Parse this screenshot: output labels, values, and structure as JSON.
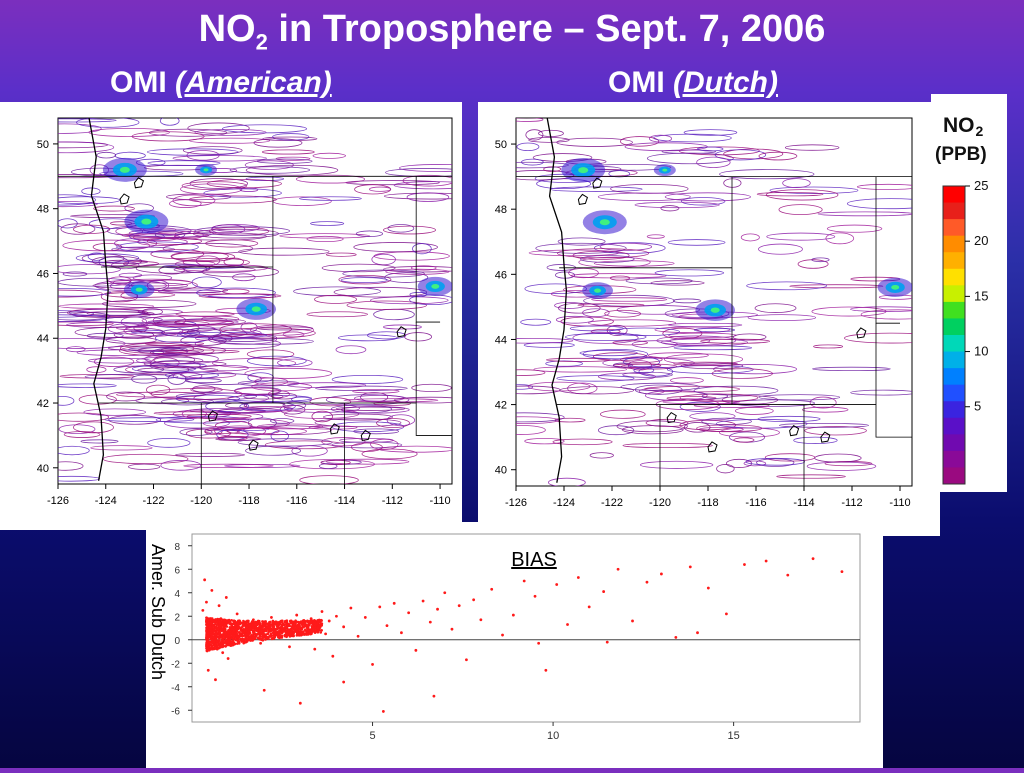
{
  "slide": {
    "title_main": "NO",
    "title_sub": "2",
    "title_rest": " in Troposphere – Sept. 7, 2006",
    "left_label_prefix": "OMI ",
    "left_label_emph": "(American)",
    "right_label_prefix": "OMI ",
    "right_label_emph": "(Dutch)"
  },
  "colorbar": {
    "title_line1": "NO",
    "title_sub": "2",
    "title_line2": "(PPB)",
    "ticks": [
      "25",
      "20",
      "15",
      "10",
      "5"
    ],
    "colors": [
      "#ff0000",
      "#e8201a",
      "#ff5a28",
      "#ff8c00",
      "#ffb000",
      "#ffe000",
      "#c8f000",
      "#40e020",
      "#00d060",
      "#00d8b8",
      "#00b0e8",
      "#0080ff",
      "#2050ff",
      "#3a24e0",
      "#5a10c8",
      "#700ab0",
      "#8a0a98",
      "#9a0a80"
    ]
  },
  "chart_data": [
    {
      "type": "heatmap",
      "title": "OMI (American)",
      "x_ticks": [
        "-126",
        "-124",
        "-122",
        "-120",
        "-118",
        "-116",
        "-114",
        "-112",
        "-110"
      ],
      "y_ticks": [
        "50",
        "48",
        "46",
        "44",
        "42",
        "40"
      ],
      "xlim": [
        -126,
        -109.5
      ],
      "ylim": [
        39.5,
        50.8
      ]
    },
    {
      "type": "heatmap",
      "title": "OMI (Dutch)",
      "x_ticks": [
        "-126",
        "-124",
        "-122",
        "-120",
        "-118",
        "-116",
        "-114",
        "-112",
        "-110"
      ],
      "y_ticks": [
        "50",
        "48",
        "46",
        "44",
        "42",
        "40"
      ],
      "xlim": [
        -126,
        -109.5
      ],
      "ylim": [
        39.5,
        50.8
      ]
    },
    {
      "type": "scatter",
      "title": "BIAS",
      "ylabel": "Amer. Sub Dutch",
      "x_ticks": [
        "5",
        "10",
        "15"
      ],
      "y_ticks": [
        "8",
        "6",
        "4",
        "2",
        "0",
        "-2",
        "-4",
        "-6"
      ],
      "xlim": [
        0,
        18.5
      ],
      "ylim": [
        -7,
        9
      ],
      "grid": false,
      "points": [
        [
          0.3,
          2.5
        ],
        [
          0.4,
          3.2
        ],
        [
          0.5,
          1.1
        ],
        [
          0.6,
          0.2
        ],
        [
          0.7,
          -0.8
        ],
        [
          0.8,
          1.8
        ],
        [
          0.9,
          0.6
        ],
        [
          1.0,
          -1.6
        ],
        [
          1.1,
          0.9
        ],
        [
          1.2,
          1.4
        ],
        [
          0.35,
          5.1
        ],
        [
          0.45,
          -2.6
        ],
        [
          0.55,
          4.2
        ],
        [
          0.65,
          -3.4
        ],
        [
          0.75,
          2.9
        ],
        [
          0.85,
          -1.1
        ],
        [
          0.95,
          3.6
        ],
        [
          1.05,
          0.3
        ],
        [
          1.15,
          -0.4
        ],
        [
          1.25,
          2.2
        ],
        [
          1.3,
          1.0
        ],
        [
          1.4,
          0.6
        ],
        [
          1.5,
          1.3
        ],
        [
          1.6,
          0.1
        ],
        [
          1.7,
          1.7
        ],
        [
          1.8,
          0.8
        ],
        [
          1.9,
          -0.3
        ],
        [
          2.0,
          1.2
        ],
        [
          2.1,
          0.5
        ],
        [
          2.2,
          1.9
        ],
        [
          2.3,
          0.9
        ],
        [
          2.4,
          0.2
        ],
        [
          2.5,
          1.5
        ],
        [
          2.6,
          0.7
        ],
        [
          2.7,
          -0.6
        ],
        [
          2.8,
          1.1
        ],
        [
          2.9,
          2.1
        ],
        [
          3.0,
          0.4
        ],
        [
          3.1,
          1.3
        ],
        [
          3.2,
          0.8
        ],
        [
          3.3,
          1.8
        ],
        [
          3.4,
          -0.8
        ],
        [
          3.5,
          1.0
        ],
        [
          3.6,
          2.4
        ],
        [
          3.7,
          0.5
        ],
        [
          3.8,
          1.6
        ],
        [
          3.9,
          -1.4
        ],
        [
          4.0,
          2.0
        ],
        [
          4.2,
          1.1
        ],
        [
          4.4,
          2.7
        ],
        [
          4.6,
          0.3
        ],
        [
          4.8,
          1.9
        ],
        [
          5.0,
          -2.1
        ],
        [
          5.2,
          2.8
        ],
        [
          5.4,
          1.2
        ],
        [
          5.6,
          3.1
        ],
        [
          5.8,
          0.6
        ],
        [
          6.0,
          2.3
        ],
        [
          6.2,
          -0.9
        ],
        [
          6.4,
          3.3
        ],
        [
          6.6,
          1.5
        ],
        [
          6.8,
          2.6
        ],
        [
          7.0,
          4.0
        ],
        [
          7.2,
          0.9
        ],
        [
          7.4,
          2.9
        ],
        [
          7.6,
          -1.7
        ],
        [
          7.8,
          3.4
        ],
        [
          8.0,
          1.7
        ],
        [
          8.3,
          4.3
        ],
        [
          8.6,
          0.4
        ],
        [
          8.9,
          2.1
        ],
        [
          9.2,
          5.0
        ],
        [
          9.5,
          3.7
        ],
        [
          9.8,
          -2.6
        ],
        [
          10.1,
          4.7
        ],
        [
          10.4,
          1.3
        ],
        [
          10.7,
          5.3
        ],
        [
          11.0,
          2.8
        ],
        [
          11.4,
          4.1
        ],
        [
          11.8,
          6.0
        ],
        [
          12.2,
          1.6
        ],
        [
          12.6,
          4.9
        ],
        [
          13.0,
          5.6
        ],
        [
          13.4,
          0.2
        ],
        [
          13.8,
          6.2
        ],
        [
          14.3,
          4.4
        ],
        [
          14.8,
          2.2
        ],
        [
          15.3,
          6.4
        ],
        [
          15.9,
          6.7
        ],
        [
          16.5,
          5.5
        ],
        [
          17.2,
          6.9
        ],
        [
          18.0,
          5.8
        ],
        [
          2.0,
          -4.3
        ],
        [
          3.0,
          -5.4
        ],
        [
          4.2,
          -3.6
        ],
        [
          5.3,
          -6.1
        ],
        [
          6.7,
          -4.8
        ],
        [
          9.6,
          -0.3
        ],
        [
          11.5,
          -0.2
        ],
        [
          14.0,
          0.6
        ]
      ]
    }
  ]
}
